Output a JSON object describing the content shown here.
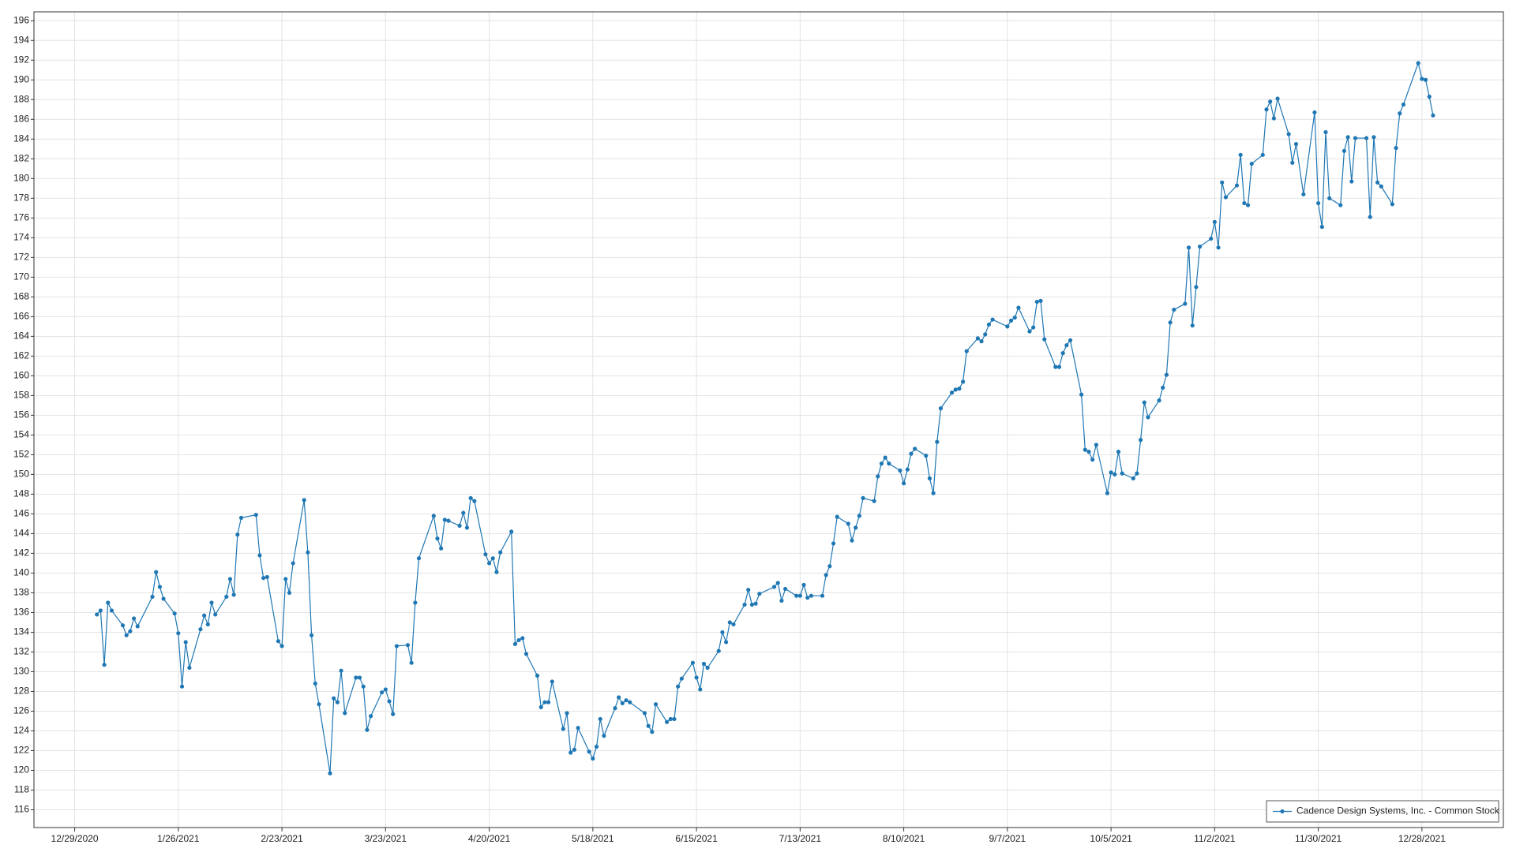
{
  "chart_data": {
    "type": "line",
    "x": [
      "2021-01-04",
      "2021-01-05",
      "2021-01-06",
      "2021-01-07",
      "2021-01-08",
      "2021-01-11",
      "2021-01-12",
      "2021-01-13",
      "2021-01-14",
      "2021-01-15",
      "2021-01-19",
      "2021-01-20",
      "2021-01-21",
      "2021-01-22",
      "2021-01-25",
      "2021-01-26",
      "2021-01-27",
      "2021-01-28",
      "2021-01-29",
      "2021-02-01",
      "2021-02-02",
      "2021-02-03",
      "2021-02-04",
      "2021-02-05",
      "2021-02-08",
      "2021-02-09",
      "2021-02-10",
      "2021-02-11",
      "2021-02-12",
      "2021-02-16",
      "2021-02-17",
      "2021-02-18",
      "2021-02-19",
      "2021-02-22",
      "2021-02-23",
      "2021-02-24",
      "2021-02-25",
      "2021-02-26",
      "2021-03-01",
      "2021-03-02",
      "2021-03-03",
      "2021-03-04",
      "2021-03-05",
      "2021-03-08",
      "2021-03-09",
      "2021-03-10",
      "2021-03-11",
      "2021-03-12",
      "2021-03-15",
      "2021-03-16",
      "2021-03-17",
      "2021-03-18",
      "2021-03-19",
      "2021-03-22",
      "2021-03-23",
      "2021-03-24",
      "2021-03-25",
      "2021-03-26",
      "2021-03-29",
      "2021-03-30",
      "2021-03-31",
      "2021-04-01",
      "2021-04-05",
      "2021-04-06",
      "2021-04-07",
      "2021-04-08",
      "2021-04-09",
      "2021-04-12",
      "2021-04-13",
      "2021-04-14",
      "2021-04-15",
      "2021-04-16",
      "2021-04-19",
      "2021-04-20",
      "2021-04-21",
      "2021-04-22",
      "2021-04-23",
      "2021-04-26",
      "2021-04-27",
      "2021-04-28",
      "2021-04-29",
      "2021-04-30",
      "2021-05-03",
      "2021-05-04",
      "2021-05-05",
      "2021-05-06",
      "2021-05-07",
      "2021-05-10",
      "2021-05-11",
      "2021-05-12",
      "2021-05-13",
      "2021-05-14",
      "2021-05-17",
      "2021-05-18",
      "2021-05-19",
      "2021-05-20",
      "2021-05-21",
      "2021-05-24",
      "2021-05-25",
      "2021-05-26",
      "2021-05-27",
      "2021-05-28",
      "2021-06-01",
      "2021-06-02",
      "2021-06-03",
      "2021-06-04",
      "2021-06-07",
      "2021-06-08",
      "2021-06-09",
      "2021-06-10",
      "2021-06-11",
      "2021-06-14",
      "2021-06-15",
      "2021-06-16",
      "2021-06-17",
      "2021-06-18",
      "2021-06-21",
      "2021-06-22",
      "2021-06-23",
      "2021-06-24",
      "2021-06-25",
      "2021-06-28",
      "2021-06-29",
      "2021-06-30",
      "2021-07-01",
      "2021-07-02",
      "2021-07-06",
      "2021-07-07",
      "2021-07-08",
      "2021-07-09",
      "2021-07-12",
      "2021-07-13",
      "2021-07-14",
      "2021-07-15",
      "2021-07-16",
      "2021-07-19",
      "2021-07-20",
      "2021-07-21",
      "2021-07-22",
      "2021-07-23",
      "2021-07-26",
      "2021-07-27",
      "2021-07-28",
      "2021-07-29",
      "2021-07-30",
      "2021-08-02",
      "2021-08-03",
      "2021-08-04",
      "2021-08-05",
      "2021-08-06",
      "2021-08-09",
      "2021-08-10",
      "2021-08-11",
      "2021-08-12",
      "2021-08-13",
      "2021-08-16",
      "2021-08-17",
      "2021-08-18",
      "2021-08-19",
      "2021-08-20",
      "2021-08-23",
      "2021-08-24",
      "2021-08-25",
      "2021-08-26",
      "2021-08-27",
      "2021-08-30",
      "2021-08-31",
      "2021-09-01",
      "2021-09-02",
      "2021-09-03",
      "2021-09-07",
      "2021-09-08",
      "2021-09-09",
      "2021-09-10",
      "2021-09-13",
      "2021-09-14",
      "2021-09-15",
      "2021-09-16",
      "2021-09-17",
      "2021-09-20",
      "2021-09-21",
      "2021-09-22",
      "2021-09-23",
      "2021-09-24",
      "2021-09-27",
      "2021-09-28",
      "2021-09-29",
      "2021-09-30",
      "2021-10-01",
      "2021-10-04",
      "2021-10-05",
      "2021-10-06",
      "2021-10-07",
      "2021-10-08",
      "2021-10-11",
      "2021-10-12",
      "2021-10-13",
      "2021-10-14",
      "2021-10-15",
      "2021-10-18",
      "2021-10-19",
      "2021-10-20",
      "2021-10-21",
      "2021-10-22",
      "2021-10-25",
      "2021-10-26",
      "2021-10-27",
      "2021-10-28",
      "2021-10-29",
      "2021-11-01",
      "2021-11-02",
      "2021-11-03",
      "2021-11-04",
      "2021-11-05",
      "2021-11-08",
      "2021-11-09",
      "2021-11-10",
      "2021-11-11",
      "2021-11-12",
      "2021-11-15",
      "2021-11-16",
      "2021-11-17",
      "2021-11-18",
      "2021-11-19",
      "2021-11-22",
      "2021-11-23",
      "2021-11-24",
      "2021-11-26",
      "2021-11-29",
      "2021-11-30",
      "2021-12-01",
      "2021-12-02",
      "2021-12-03",
      "2021-12-06",
      "2021-12-07",
      "2021-12-08",
      "2021-12-09",
      "2021-12-10",
      "2021-12-13",
      "2021-12-14",
      "2021-12-15",
      "2021-12-16",
      "2021-12-17",
      "2021-12-20",
      "2021-12-21",
      "2021-12-22",
      "2021-12-23",
      "2021-12-27",
      "2021-12-28",
      "2021-12-29",
      "2021-12-30",
      "2021-12-31"
    ],
    "series": [
      {
        "name": "Cadence Design Systems, Inc. - Common Stock",
        "color": "#1f77b4",
        "values": [
          135.8,
          136.2,
          130.7,
          137.0,
          136.2,
          134.7,
          133.7,
          134.1,
          135.4,
          134.6,
          137.6,
          140.1,
          138.6,
          137.4,
          135.9,
          133.9,
          128.5,
          133.0,
          130.4,
          134.3,
          135.7,
          134.8,
          137.0,
          135.8,
          137.6,
          139.4,
          137.8,
          143.9,
          145.6,
          145.9,
          141.8,
          139.5,
          139.6,
          133.1,
          132.6,
          139.4,
          138.0,
          141.0,
          147.4,
          142.1,
          133.7,
          128.8,
          126.7,
          119.7,
          127.3,
          126.9,
          130.1,
          125.8,
          129.4,
          129.4,
          128.5,
          124.1,
          125.5,
          127.9,
          128.2,
          127.0,
          125.7,
          132.6,
          132.7,
          130.9,
          137.0,
          141.5,
          145.8,
          143.5,
          142.5,
          145.4,
          145.3,
          144.8,
          146.1,
          144.6,
          147.6,
          147.3,
          141.9,
          141.0,
          141.5,
          140.1,
          142.1,
          144.2,
          132.8,
          133.2,
          133.4,
          131.8,
          129.6,
          126.4,
          126.9,
          126.9,
          129.0,
          124.2,
          125.8,
          121.8,
          122.1,
          124.3,
          121.9,
          121.2,
          122.4,
          125.2,
          123.5,
          126.3,
          127.4,
          126.8,
          127.1,
          126.9,
          125.8,
          124.5,
          123.9,
          126.7,
          124.9,
          125.2,
          125.2,
          128.5,
          129.3,
          130.9,
          129.4,
          128.2,
          130.8,
          130.4,
          132.1,
          134.0,
          133.0,
          135.0,
          134.8,
          136.8,
          138.3,
          136.8,
          136.9,
          137.9,
          138.6,
          139.0,
          137.2,
          138.4,
          137.7,
          137.7,
          138.8,
          137.5,
          137.7,
          137.7,
          139.8,
          140.7,
          143.0,
          145.7,
          145.0,
          143.3,
          144.6,
          145.8,
          147.6,
          147.3,
          149.8,
          151.1,
          151.7,
          151.1,
          150.4,
          149.1,
          150.5,
          152.1,
          152.6,
          151.9,
          149.6,
          148.1,
          153.3,
          156.7,
          158.3,
          158.6,
          158.7,
          159.4,
          162.5,
          163.8,
          163.5,
          164.2,
          165.2,
          165.7,
          165.0,
          165.6,
          165.9,
          166.9,
          164.5,
          164.9,
          167.5,
          167.6,
          163.7,
          160.9,
          160.9,
          162.3,
          163.1,
          163.6,
          158.1,
          152.5,
          152.3,
          151.5,
          153.0,
          148.1,
          150.2,
          150.0,
          152.3,
          150.1,
          149.6,
          150.1,
          153.5,
          157.3,
          155.8,
          157.5,
          158.8,
          160.1,
          165.4,
          166.7,
          167.3,
          173.0,
          165.1,
          169.0,
          173.1,
          173.9,
          175.6,
          173.0,
          179.6,
          178.1,
          179.3,
          182.4,
          177.5,
          177.3,
          181.5,
          182.4,
          187.0,
          187.8,
          186.1,
          188.1,
          184.5,
          181.6,
          183.5,
          178.4,
          186.7,
          177.5,
          175.1,
          184.7,
          178.0,
          177.3,
          182.8,
          184.2,
          179.7,
          184.1,
          184.1,
          176.1,
          184.2,
          179.6,
          179.2,
          177.4,
          183.1,
          186.6,
          187.5,
          191.7,
          190.1,
          190.0,
          188.3,
          186.4
        ]
      }
    ],
    "xlim": [
      "2020-12-18",
      "2022-01-19"
    ],
    "xticks": [
      {
        "value": "2020-12-29",
        "label": "12/29/2020"
      },
      {
        "value": "2021-01-26",
        "label": "1/26/2021"
      },
      {
        "value": "2021-02-23",
        "label": "2/23/2021"
      },
      {
        "value": "2021-03-23",
        "label": "3/23/2021"
      },
      {
        "value": "2021-04-20",
        "label": "4/20/2021"
      },
      {
        "value": "2021-05-18",
        "label": "5/18/2021"
      },
      {
        "value": "2021-06-15",
        "label": "6/15/2021"
      },
      {
        "value": "2021-07-13",
        "label": "7/13/2021"
      },
      {
        "value": "2021-08-10",
        "label": "8/10/2021"
      },
      {
        "value": "2021-09-07",
        "label": "9/7/2021"
      },
      {
        "value": "2021-10-05",
        "label": "10/5/2021"
      },
      {
        "value": "2021-11-02",
        "label": "11/2/2021"
      },
      {
        "value": "2021-11-30",
        "label": "11/30/2021"
      },
      {
        "value": "2021-12-28",
        "label": "12/28/2021"
      }
    ],
    "ylim": [
      114.2,
      196.9
    ],
    "yticks": [
      116,
      118,
      120,
      122,
      124,
      126,
      128,
      130,
      132,
      134,
      136,
      138,
      140,
      142,
      144,
      146,
      148,
      150,
      152,
      154,
      156,
      158,
      160,
      162,
      164,
      166,
      168,
      170,
      172,
      174,
      176,
      178,
      180,
      182,
      184,
      186,
      188,
      190,
      192,
      194,
      196
    ],
    "grid": true,
    "legend": "lower right"
  }
}
